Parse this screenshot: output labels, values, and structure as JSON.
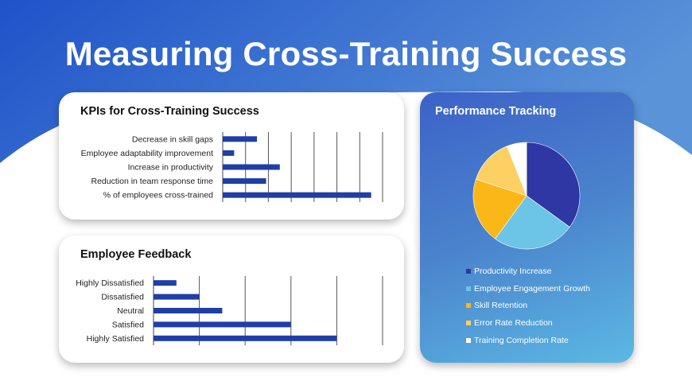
{
  "slide": {
    "title": "Measuring Cross-Training Success",
    "bg_dark": "#1f52c9",
    "bg_light": "#5a93d8"
  },
  "kpi_card": {
    "title": "KPIs for Cross-Training  Success"
  },
  "feedback_card": {
    "title": "Employee  Feedback"
  },
  "performance_card": {
    "title": "Performance  Tracking"
  },
  "chart_data": [
    {
      "type": "bar",
      "orientation": "horizontal",
      "title": "KPIs for Cross-Training  Success",
      "categories": [
        "Decrease in skill gaps",
        "Employee adaptability improvement",
        "Increase in productivity",
        "Reduction in team response time",
        "% of employees cross-trained"
      ],
      "values": [
        15,
        5,
        25,
        19,
        65
      ],
      "xlim": [
        0,
        70
      ],
      "grid": true,
      "bar_color": "#1f3fa6"
    },
    {
      "type": "bar",
      "orientation": "horizontal",
      "title": "Employee  Feedback",
      "categories": [
        "Highly Dissatisfied",
        "Dissatisfied",
        "Neutral",
        "Satisfied",
        "Highly Satisfied"
      ],
      "values": [
        5,
        10,
        15,
        30,
        40
      ],
      "xlim": [
        0,
        50
      ],
      "grid": true,
      "bar_color": "#1f3fa6"
    },
    {
      "type": "pie",
      "title": "Performance  Tracking",
      "categories": [
        "Productivity Increase",
        "Employee Engagement Growth",
        "Skill Retention",
        "Error Rate Reduction",
        "Training Completion Rate"
      ],
      "values": [
        35,
        25,
        20,
        14,
        6
      ],
      "colors": [
        "#2e37a3",
        "#6cc4e6",
        "#fbb718",
        "#fcd063",
        "#ffffff"
      ],
      "legend": "bottom"
    }
  ]
}
